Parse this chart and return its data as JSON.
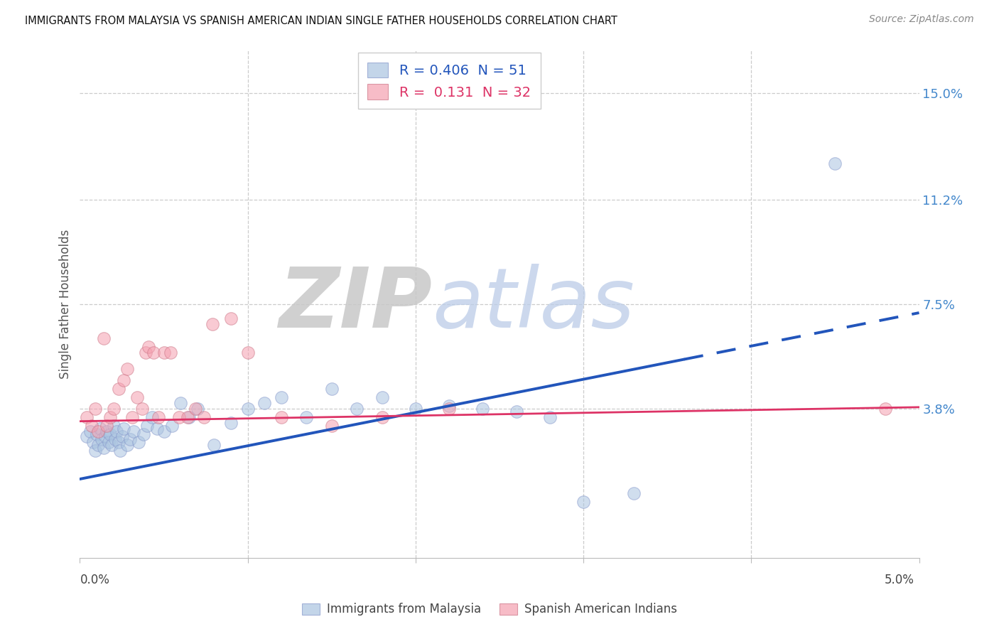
{
  "title": "IMMIGRANTS FROM MALAYSIA VS SPANISH AMERICAN INDIAN SINGLE FATHER HOUSEHOLDS CORRELATION CHART",
  "source": "Source: ZipAtlas.com",
  "ylabel": "Single Father Households",
  "right_yticks": [
    15.0,
    11.2,
    7.5,
    3.8
  ],
  "xlim": [
    0.0,
    5.0
  ],
  "ylim": [
    -1.5,
    16.5
  ],
  "blue_R": 0.406,
  "blue_N": 51,
  "pink_R": 0.131,
  "pink_N": 32,
  "blue_label": "Immigrants from Malaysia",
  "pink_label": "Spanish American Indians",
  "blue_color": "#aac4e0",
  "pink_color": "#f5a0b0",
  "blue_line_color": "#2255bb",
  "pink_line_color": "#dd3366",
  "blue_scatter_x": [
    0.04,
    0.06,
    0.08,
    0.09,
    0.1,
    0.11,
    0.12,
    0.13,
    0.14,
    0.15,
    0.16,
    0.17,
    0.18,
    0.19,
    0.2,
    0.21,
    0.22,
    0.23,
    0.24,
    0.25,
    0.26,
    0.28,
    0.3,
    0.32,
    0.35,
    0.38,
    0.4,
    0.43,
    0.46,
    0.5,
    0.55,
    0.6,
    0.65,
    0.7,
    0.8,
    0.9,
    1.0,
    1.1,
    1.2,
    1.35,
    1.5,
    1.65,
    1.8,
    2.0,
    2.2,
    2.4,
    2.6,
    2.8,
    3.0,
    3.3,
    4.5
  ],
  "blue_scatter_y": [
    2.8,
    3.0,
    2.6,
    2.3,
    2.9,
    2.5,
    3.1,
    2.7,
    2.4,
    2.8,
    3.0,
    2.6,
    2.9,
    2.5,
    3.2,
    2.7,
    3.0,
    2.6,
    2.3,
    2.8,
    3.1,
    2.5,
    2.7,
    3.0,
    2.6,
    2.9,
    3.2,
    3.5,
    3.1,
    3.0,
    3.2,
    4.0,
    3.5,
    3.8,
    2.5,
    3.3,
    3.8,
    4.0,
    4.2,
    3.5,
    4.5,
    3.8,
    4.2,
    3.8,
    3.9,
    3.8,
    3.7,
    3.5,
    0.5,
    0.8,
    12.5
  ],
  "pink_scatter_x": [
    0.04,
    0.07,
    0.09,
    0.11,
    0.14,
    0.16,
    0.18,
    0.2,
    0.23,
    0.26,
    0.28,
    0.31,
    0.34,
    0.37,
    0.39,
    0.41,
    0.44,
    0.47,
    0.5,
    0.54,
    0.59,
    0.64,
    0.69,
    0.74,
    0.79,
    0.9,
    1.0,
    1.2,
    1.5,
    1.8,
    2.2,
    4.8
  ],
  "pink_scatter_y": [
    3.5,
    3.2,
    3.8,
    3.0,
    6.3,
    3.2,
    3.5,
    3.8,
    4.5,
    4.8,
    5.2,
    3.5,
    4.2,
    3.8,
    5.8,
    6.0,
    5.8,
    3.5,
    5.8,
    5.8,
    3.5,
    3.5,
    3.8,
    3.5,
    6.8,
    7.0,
    5.8,
    3.5,
    3.2,
    3.5,
    3.8,
    3.8
  ],
  "blue_reg_y0": 1.3,
  "blue_reg_y1": 7.2,
  "blue_solid_end_x": 3.6,
  "pink_reg_y0": 3.35,
  "pink_reg_y1": 3.85,
  "grid_color": "#cccccc",
  "spine_color": "#bbbbbb"
}
